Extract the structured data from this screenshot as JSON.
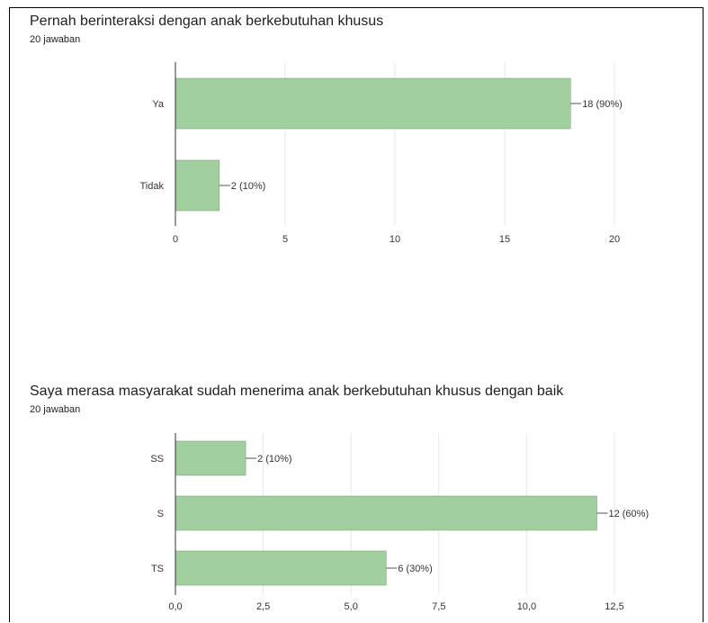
{
  "chart_data": [
    {
      "type": "bar",
      "orientation": "horizontal",
      "title": "Pernah berinteraksi dengan anak berkebutuhan khusus",
      "subtitle": "20 jawaban",
      "categories": [
        "Ya",
        "Tidak"
      ],
      "values": [
        18,
        2
      ],
      "data_labels": [
        "18 (90%)",
        "2 (10%)"
      ],
      "xlim": [
        0,
        20
      ],
      "ticks": [
        0,
        5,
        10,
        15,
        20
      ],
      "tick_labels": [
        "0",
        "5",
        "10",
        "15",
        "20"
      ],
      "grid": true,
      "legend": "none",
      "bar_color": "#a1cf9f"
    },
    {
      "type": "bar",
      "orientation": "horizontal",
      "title": "Saya merasa masyarakat sudah menerima anak berkebutuhan khusus dengan baik",
      "subtitle": "20 jawaban",
      "categories": [
        "SS",
        "S",
        "TS"
      ],
      "values": [
        2,
        12,
        6
      ],
      "data_labels": [
        "2 (10%)",
        "12 (60%)",
        "6 (30%)"
      ],
      "xlim": [
        0,
        12.5
      ],
      "ticks": [
        0,
        2.5,
        5,
        7.5,
        10,
        12.5
      ],
      "tick_labels": [
        "0,0",
        "2,5",
        "5,0",
        "7,5",
        "10,0",
        "12,5"
      ],
      "grid": true,
      "legend": "none",
      "bar_color": "#a1cf9f"
    }
  ]
}
